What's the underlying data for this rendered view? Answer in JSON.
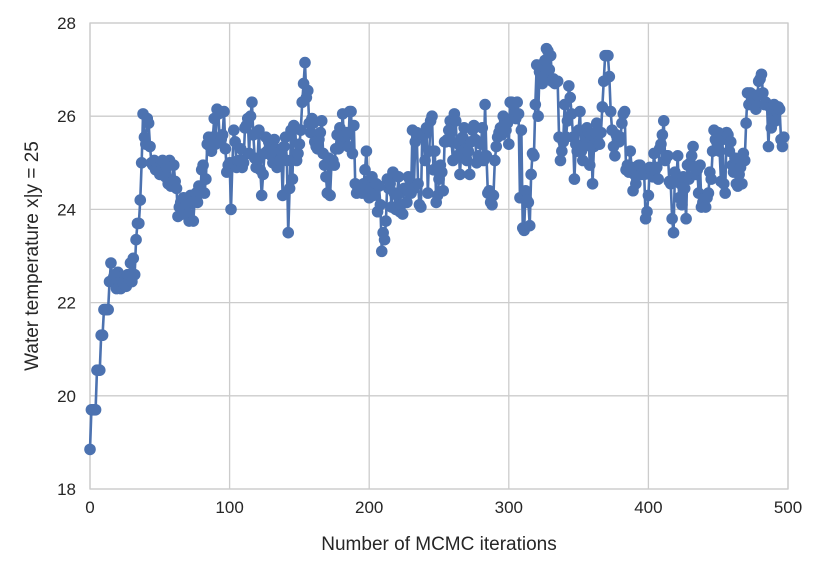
{
  "chart_data": {
    "type": "line",
    "xlabel": "Number of MCMC iterations",
    "ylabel": "Water temperature x|y = 25",
    "xlim": [
      0,
      500
    ],
    "ylim": [
      18,
      28
    ],
    "x_ticks": [
      0,
      100,
      200,
      300,
      400,
      500
    ],
    "y_ticks": [
      18,
      20,
      22,
      24,
      26,
      28
    ],
    "x_tick_labels": [
      "0",
      "100",
      "200",
      "300",
      "400",
      "500"
    ],
    "y_tick_labels": [
      "18",
      "20",
      "22",
      "24",
      "26",
      "28"
    ],
    "grid": true,
    "legend": "none",
    "series": [
      {
        "color": "#4c72b0",
        "marker": "circle",
        "x_start": 0,
        "x_step": 1,
        "values": [
          18.85,
          19.7,
          19.7,
          19.7,
          19.7,
          20.55,
          20.55,
          20.55,
          21.3,
          21.3,
          21.85,
          21.85,
          21.85,
          21.85,
          22.45,
          22.85,
          22.45,
          22.55,
          22.6,
          22.3,
          22.65,
          22.35,
          22.3,
          22.55,
          22.4,
          22.5,
          22.35,
          22.6,
          22.55,
          22.85,
          22.45,
          22.95,
          22.6,
          23.35,
          23.7,
          23.7,
          24.2,
          25.0,
          26.05,
          25.55,
          25.4,
          25.95,
          25.85,
          25.35,
          25.0,
          24.95,
          25.05,
          24.85,
          25.0,
          24.9,
          24.75,
          25.0,
          25.05,
          24.8,
          24.7,
          24.9,
          24.55,
          25.05,
          24.5,
          24.6,
          24.95,
          24.6,
          24.45,
          23.85,
          24.05,
          24.15,
          23.9,
          24.25,
          24.05,
          24.1,
          23.9,
          23.75,
          24.3,
          24.15,
          23.75,
          24.2,
          24.35,
          24.15,
          24.5,
          24.35,
          24.85,
          24.95,
          24.35,
          24.65,
          25.4,
          25.55,
          25.35,
          25.25,
          25.55,
          25.95,
          25.4,
          26.15,
          26.05,
          25.45,
          25.5,
          25.6,
          26.1,
          25.3,
          24.8,
          24.95,
          25.0,
          24.0,
          25.0,
          25.7,
          25.45,
          24.9,
          25.05,
          25.05,
          25.3,
          24.9,
          25.0,
          25.75,
          25.8,
          25.95,
          25.2,
          26.0,
          26.3,
          25.6,
          25.1,
          24.9,
          25.05,
          25.7,
          24.85,
          24.3,
          24.75,
          25.2,
          25.55,
          25.25,
          25.45,
          25.35,
          25.15,
          25.0,
          25.5,
          25.3,
          24.9,
          25.05,
          25.05,
          25.25,
          24.3,
          25.35,
          25.55,
          25.05,
          23.5,
          24.45,
          25.7,
          24.65,
          25.8,
          25.75,
          25.05,
          25.2,
          25.4,
          25.7,
          26.3,
          26.7,
          27.15,
          26.4,
          26.55,
          25.85,
          25.65,
          25.95,
          25.85,
          25.45,
          25.35,
          25.3,
          25.5,
          25.65,
          25.9,
          25.2,
          24.95,
          24.7,
          24.35,
          25.1,
          24.3,
          25.0,
          25.05,
          24.95,
          25.3,
          25.6,
          25.3,
          25.75,
          25.55,
          26.05,
          25.45,
          25.55,
          25.65,
          25.35,
          26.1,
          26.1,
          25.2,
          25.8,
          24.55,
          24.35,
          24.45,
          24.5,
          24.4,
          24.35,
          24.55,
          24.85,
          25.25,
          24.6,
          24.25,
          24.45,
          24.7,
          24.3,
          24.4,
          24.55,
          23.95,
          24.5,
          24.1,
          23.1,
          23.5,
          23.35,
          23.75,
          24.65,
          24.45,
          24.55,
          24.05,
          24.8,
          24.35,
          24.0,
          24.3,
          24.7,
          23.95,
          24.1,
          23.9,
          24.45,
          24.45,
          24.15,
          24.7,
          24.65,
          24.35,
          25.7,
          24.45,
          25.45,
          25.65,
          24.55,
          24.1,
          24.05,
          25.6,
          25.6,
          25.05,
          25.75,
          24.35,
          25.25,
          25.9,
          26.0,
          24.85,
          25.25,
          24.15,
          24.3,
          24.65,
          24.95,
          24.8,
          24.4,
          25.45,
          25.45,
          25.5,
          25.7,
          25.9,
          25.45,
          25.05,
          26.05,
          25.9,
          25.15,
          25.4,
          24.75,
          25.25,
          25.55,
          25.75,
          25.3,
          25.05,
          25.25,
          24.75,
          25.45,
          25.7,
          25.8,
          25.5,
          25.0,
          25.15,
          25.05,
          25.4,
          25.75,
          25.05,
          26.25,
          25.15,
          24.35,
          24.4,
          24.15,
          24.1,
          24.3,
          25.05,
          25.35,
          25.55,
          25.65,
          25.75,
          25.6,
          26.0,
          25.9,
          25.7,
          25.85,
          25.4,
          26.3,
          26.3,
          26.25,
          26.05,
          25.95,
          26.3,
          26.05,
          24.25,
          25.7,
          23.6,
          23.55,
          24.4,
          24.2,
          24.15,
          23.65,
          24.75,
          25.2,
          25.15,
          26.25,
          27.1,
          26.0,
          26.95,
          27.1,
          26.7,
          26.85,
          27.2,
          27.45,
          27.4,
          27.0,
          27.3,
          26.75,
          26.8,
          26.7,
          26.75,
          26.75,
          25.55,
          25.05,
          25.25,
          25.45,
          26.25,
          25.55,
          25.9,
          26.65,
          26.4,
          26.05,
          25.55,
          24.65,
          25.4,
          25.25,
          25.7,
          26.1,
          25.25,
          25.05,
          25.35,
          25.55,
          25.75,
          25.65,
          24.95,
          25.6,
          24.55,
          25.35,
          25.65,
          25.85,
          25.45,
          25.4,
          25.65,
          26.2,
          26.75,
          27.3,
          27.3,
          27.3,
          26.85,
          26.1,
          25.7,
          25.35,
          25.15,
          25.6,
          25.55,
          25.45,
          25.55,
          25.85,
          26.05,
          26.1,
          24.85,
          24.95,
          24.8,
          25.25,
          24.9,
          24.4,
          24.75,
          24.55,
          24.75,
          24.95,
          24.95,
          24.75,
          24.8,
          24.75,
          23.8,
          23.95,
          24.3,
          24.9,
          24.85,
          24.7,
          25.2,
          24.85,
          24.9,
          24.65,
          25.3,
          25.4,
          25.6,
          25.9,
          25.05,
          25.15,
          25.15,
          24.6,
          24.55,
          23.8,
          23.5,
          24.8,
          24.6,
          25.15,
          24.25,
          24.55,
          24.1,
          24.7,
          24.45,
          23.8,
          24.95,
          24.65,
          25.0,
          25.15,
          25.35,
          24.9,
          24.75,
          24.85,
          24.35,
          24.95,
          24.05,
          24.15,
          24.25,
          24.05,
          24.25,
          24.35,
          24.8,
          24.65,
          25.25,
          25.7,
          25.5,
          25.45,
          25.65,
          25.25,
          24.6,
          25.5,
          24.55,
          24.35,
          25.65,
          25.6,
          25.25,
          25.45,
          24.95,
          24.8,
          25.1,
          24.55,
          24.5,
          24.75,
          24.9,
          24.55,
          25.2,
          25.05,
          25.85,
          26.5,
          26.25,
          26.5,
          26.35,
          26.25,
          26.35,
          26.15,
          26.45,
          26.75,
          26.8,
          26.9,
          26.5,
          26.25,
          26.3,
          26.25,
          25.35,
          26.2,
          25.75,
          25.95,
          26.25,
          25.9,
          26.1,
          26.2,
          26.15,
          25.5,
          25.35,
          25.55
        ]
      }
    ]
  }
}
